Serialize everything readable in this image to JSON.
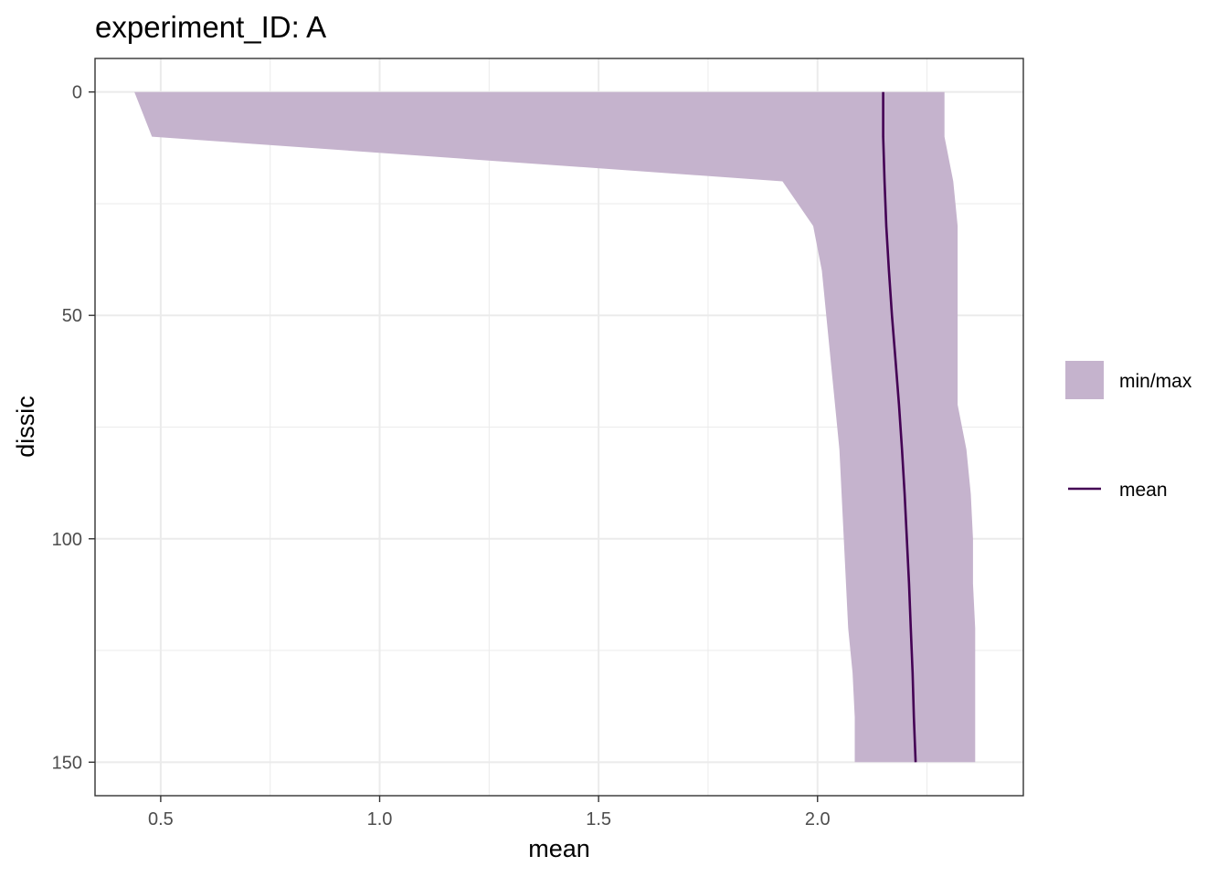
{
  "chart_data": {
    "type": "line",
    "title": "experiment_ID: A",
    "xlabel": "mean",
    "ylabel": "dissic",
    "xlim": [
      0.35,
      2.47
    ],
    "ylim": [
      157.5,
      -7.5
    ],
    "y_reversed": true,
    "x_ticks": [
      0.5,
      1.0,
      1.5,
      2.0
    ],
    "x_tick_labels": [
      "0.5",
      "1.0",
      "1.5",
      "2.0"
    ],
    "y_ticks": [
      0,
      50,
      100,
      150
    ],
    "y_tick_labels": [
      "0",
      "50",
      "100",
      "150"
    ],
    "x_minor_ticks": [
      0.75,
      1.25,
      1.75,
      2.25
    ],
    "y_minor_ticks": [
      25,
      75,
      125
    ],
    "grid": true,
    "legend_position": "right",
    "ribbon": {
      "name": "min/max",
      "color": "#c5b3cd",
      "depth": [
        0,
        10,
        20,
        30,
        40,
        50,
        60,
        70,
        80,
        90,
        100,
        110,
        120,
        130,
        140,
        150
      ],
      "min": [
        0.44,
        0.48,
        1.92,
        1.99,
        2.01,
        2.02,
        2.03,
        2.04,
        2.05,
        2.055,
        2.06,
        2.065,
        2.07,
        2.08,
        2.085,
        2.085
      ],
      "max": [
        2.29,
        2.29,
        2.31,
        2.32,
        2.32,
        2.32,
        2.32,
        2.32,
        2.34,
        2.35,
        2.355,
        2.355,
        2.36,
        2.36,
        2.36,
        2.36
      ]
    },
    "series": [
      {
        "name": "mean",
        "color": "#440154",
        "depth": [
          0,
          10,
          20,
          30,
          40,
          50,
          60,
          70,
          80,
          90,
          100,
          110,
          120,
          130,
          140,
          150
        ],
        "values": [
          2.15,
          2.15,
          2.153,
          2.157,
          2.163,
          2.17,
          2.178,
          2.186,
          2.193,
          2.199,
          2.204,
          2.209,
          2.213,
          2.217,
          2.22,
          2.224
        ]
      }
    ],
    "legend": {
      "items": [
        {
          "label": "min/max",
          "kind": "fill",
          "color": "#c5b3cd"
        },
        {
          "label": "mean",
          "kind": "line",
          "color": "#440154"
        }
      ]
    }
  }
}
